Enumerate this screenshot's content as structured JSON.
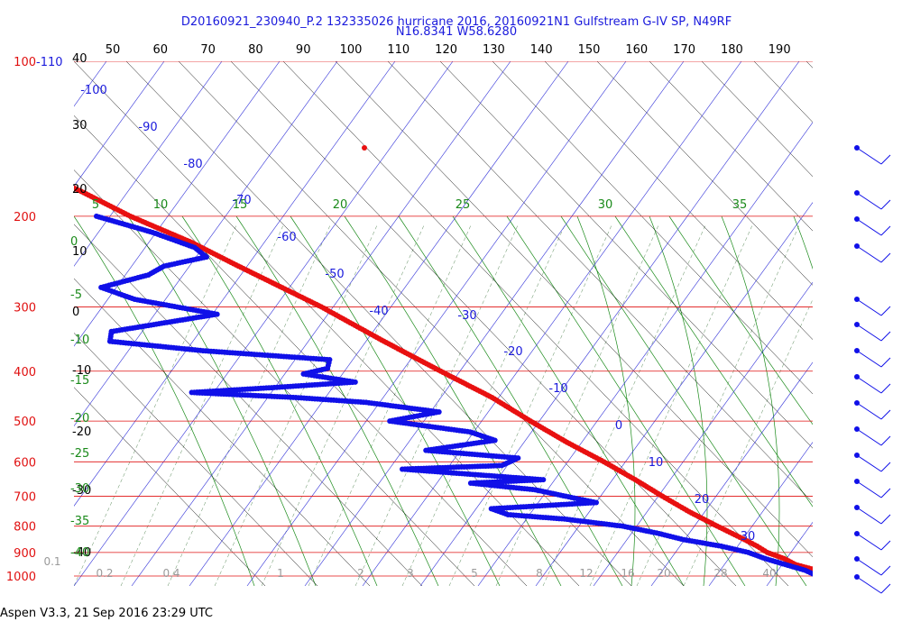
{
  "header": {
    "title_line1": "D20160921_230940_P.2 132335026 hurricane 2016, 20160921N1 Gulfstream G-IV SP, N49RF",
    "title_line2": "N16.8341 W58.6280"
  },
  "footer": {
    "text": "Aspen V3.3, 21 Sep 2016  23:29 UTC"
  },
  "chart_data": {
    "type": "scatter",
    "y_axis": "pressure (log)",
    "ylim": [
      1000,
      100
    ],
    "pressure_labels": [
      "100",
      "200",
      "300",
      "400",
      "500",
      "600",
      "700",
      "800",
      "900",
      "1000"
    ],
    "height_labels": [
      "-110"
    ],
    "theta_top_labels": [
      "50",
      "60",
      "70",
      "80",
      "90",
      "100",
      "110",
      "120",
      "130",
      "140",
      "150",
      "160",
      "170",
      "180",
      "190"
    ],
    "left_temp_labels": [
      "40",
      "30",
      "20",
      "10",
      "0",
      "-10",
      "-20",
      "-30",
      "-40"
    ],
    "dry_adiabat_labels": [
      "-100",
      "-90",
      "-80",
      "-70",
      "-60",
      "-50",
      "-40",
      "-30",
      "-20",
      "-10",
      "0",
      "10",
      "20",
      "30"
    ],
    "theta_e_labels": [
      "5",
      "10",
      "15",
      "20",
      "25",
      "30",
      "35"
    ],
    "green_left_labels": [
      "0",
      "-5",
      "-10",
      "-15",
      "-20",
      "-25",
      "-30",
      "-35",
      "-40"
    ],
    "mixing_ratio_labels": [
      "0.1",
      "0.2",
      "0.4",
      "1",
      "2",
      "3",
      "5",
      "8",
      "12",
      "16",
      "20",
      "28",
      "40"
    ],
    "series": [
      {
        "name": "",
        "color": "#e81010",
        "points": [
          {
            "p": 1000,
            "t": 27.0
          },
          {
            "p": 990,
            "t": 25.2
          },
          {
            "p": 975,
            "t": 23.2
          },
          {
            "p": 950,
            "t": 20.5
          },
          {
            "p": 925,
            "t": 19.3
          },
          {
            "p": 900,
            "t": 17.3
          },
          {
            "p": 875,
            "t": 16.3
          },
          {
            "p": 850,
            "t": 15.0
          },
          {
            "p": 800,
            "t": 12.0
          },
          {
            "p": 750,
            "t": 9.0
          },
          {
            "p": 700,
            "t": 6.3
          },
          {
            "p": 650,
            "t": 3.6
          },
          {
            "p": 600,
            "t": 0.4
          },
          {
            "p": 550,
            "t": -3.5
          },
          {
            "p": 500,
            "t": -7.2
          },
          {
            "p": 450,
            "t": -11.0
          },
          {
            "p": 400,
            "t": -16.5
          },
          {
            "p": 350,
            "t": -22.5
          },
          {
            "p": 300,
            "t": -29.0
          },
          {
            "p": 250,
            "t": -38.0
          },
          {
            "p": 225,
            "t": -43.0
          },
          {
            "p": 200,
            "t": -50.0
          },
          {
            "p": 180,
            "t": -55.0
          },
          {
            "p": 160,
            "t": -61.0
          }
        ]
      },
      {
        "name": "",
        "color": "#1010e8",
        "points": [
          {
            "p": 1000,
            "t": 23.0
          },
          {
            "p": 990,
            "t": 22.3
          },
          {
            "p": 975,
            "t": 21.5
          },
          {
            "p": 950,
            "t": 19.0
          },
          {
            "p": 925,
            "t": 16.5
          },
          {
            "p": 900,
            "t": 14.5
          },
          {
            "p": 875,
            "t": 11.0
          },
          {
            "p": 850,
            "t": 6.0
          },
          {
            "p": 825,
            "t": 2.5
          },
          {
            "p": 800,
            "t": -2.0
          },
          {
            "p": 775,
            "t": -10.0
          },
          {
            "p": 760,
            "t": -18.0
          },
          {
            "p": 740,
            "t": -20.0
          },
          {
            "p": 720,
            "t": -4.0
          },
          {
            "p": 700,
            "t": -8.0
          },
          {
            "p": 680,
            "t": -12.0
          },
          {
            "p": 660,
            "t": -21.0
          },
          {
            "p": 650,
            "t": -10.0
          },
          {
            "p": 620,
            "t": -30.0
          },
          {
            "p": 610,
            "t": -15.0
          },
          {
            "p": 590,
            "t": -12.0
          },
          {
            "p": 570,
            "t": -25.0
          },
          {
            "p": 545,
            "t": -14.0
          },
          {
            "p": 525,
            "t": -17.0
          },
          {
            "p": 500,
            "t": -28.0
          },
          {
            "p": 480,
            "t": -20.0
          },
          {
            "p": 460,
            "t": -30.0
          },
          {
            "p": 450,
            "t": -40.0
          },
          {
            "p": 440,
            "t": -55.0
          },
          {
            "p": 430,
            "t": -42.0
          },
          {
            "p": 420,
            "t": -30.0
          },
          {
            "p": 405,
            "t": -37.0
          },
          {
            "p": 395,
            "t": -33.0
          },
          {
            "p": 380,
            "t": -32.0
          },
          {
            "p": 365,
            "t": -50.0
          },
          {
            "p": 350,
            "t": -63.0
          },
          {
            "p": 335,
            "t": -62.0
          },
          {
            "p": 310,
            "t": -45.0
          },
          {
            "p": 290,
            "t": -56.0
          },
          {
            "p": 275,
            "t": -60.0
          },
          {
            "p": 260,
            "t": -52.0
          },
          {
            "p": 250,
            "t": -49.0
          },
          {
            "p": 240,
            "t": -42.0
          },
          {
            "p": 230,
            "t": -43.0
          },
          {
            "p": 215,
            "t": -48.0
          },
          {
            "p": 200,
            "t": -55.0
          }
        ]
      }
    ],
    "wind_barbs_present": true
  }
}
